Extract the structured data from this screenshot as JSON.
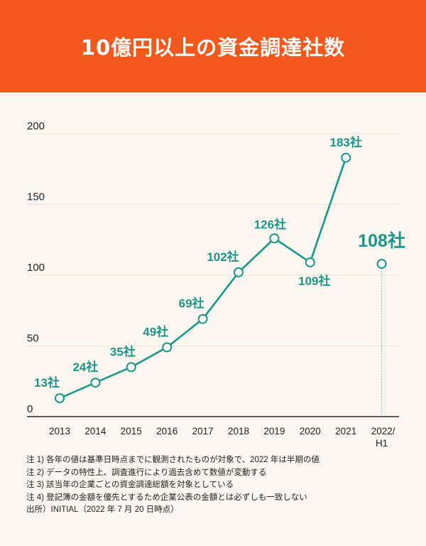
{
  "title": "10億円以上の資金調達社数",
  "colors": {
    "header": "#F4581C",
    "line": "#1A9688",
    "background": "#FDF7F0",
    "grid": "#F3E4D6"
  },
  "chart_data": {
    "type": "line",
    "title": "10億円以上の資金調達社数",
    "categories": [
      "2013",
      "2014",
      "2015",
      "2016",
      "2017",
      "2018",
      "2019",
      "2020",
      "2021",
      "2022/H1"
    ],
    "values": [
      13,
      24,
      35,
      49,
      69,
      102,
      126,
      109,
      183,
      108
    ],
    "unit": "社",
    "data_labels": [
      "13社",
      "24社",
      "35社",
      "49社",
      "69社",
      "102社",
      "126社",
      "109社",
      "183社",
      "108社"
    ],
    "ylim": [
      0,
      200
    ],
    "yticks": [
      0,
      50,
      100,
      150,
      200
    ],
    "grid": true,
    "note": "2022/H1 point is half-year, shown unconnected with dotted drop line"
  },
  "notes": [
    "注 1) 各年の値は基準日時点までに観測されたものが対象で、2022 年は半期の値",
    "注 2) データの特性上、調査進行により過去含めて数値が変動する",
    "注 3) 該当年の企業ごとの資金調達総額を対象としている",
    "注 4) 登記簿の金額を優先とするため企業公表の金額とは必ずしも一致しない",
    "出所）INITIAL（2022 年 7 月 20 日時点）"
  ]
}
